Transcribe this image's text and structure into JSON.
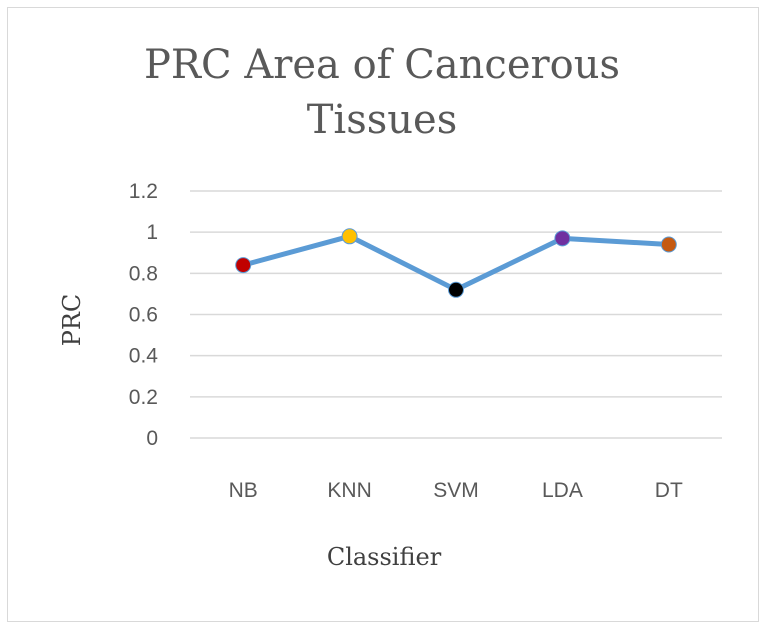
{
  "chart_data": {
    "type": "line",
    "title_lines": [
      "PRC Area of Cancerous",
      "Tissues"
    ],
    "xlabel": "Classifier",
    "ylabel": "PRC",
    "categories": [
      "NB",
      "KNN",
      "SVM",
      "LDA",
      "DT"
    ],
    "series": [
      {
        "values": [
          0.84,
          0.98,
          0.72,
          0.97,
          0.94
        ]
      }
    ],
    "ylim": [
      0,
      1.2
    ],
    "yticks": [
      "0",
      "0.2",
      "0.4",
      "0.6",
      "0.8",
      "1",
      "1.2"
    ],
    "grid": true,
    "line_color": "#5b9bd5",
    "point_colors": [
      "#c00000",
      "#ffc000",
      "#000000",
      "#7030a0",
      "#c55a11"
    ]
  }
}
